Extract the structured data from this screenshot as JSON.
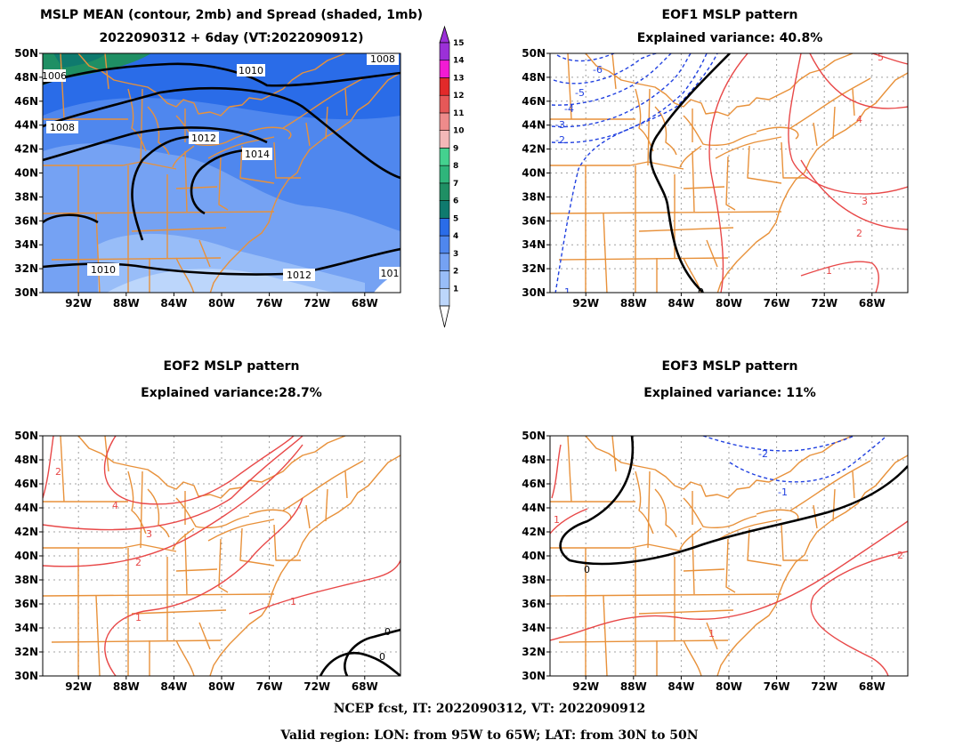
{
  "panels": {
    "p1": {
      "title_line1": "MSLP MEAN (contour, 2mb) and Spread (shaded, 1mb)",
      "title_line2": "2022090312 + 6day (VT:2022090912)",
      "contour_labels": [
        "1010",
        "1008",
        "1006",
        "1008",
        "1012",
        "1014",
        "1010",
        "1012",
        "101"
      ],
      "colorbar": {
        "levels": [
          "1",
          "2",
          "3",
          "4",
          "5",
          "6",
          "7",
          "8",
          "9",
          "10",
          "11",
          "12",
          "13",
          "14",
          "15"
        ],
        "colors": [
          "#bcd6fb",
          "#98bdf8",
          "#75a2f3",
          "#4f87ee",
          "#2a6ce8",
          "#0f7a6e",
          "#1f8f64",
          "#2fb57b",
          "#44d18f",
          "#f3b8b8",
          "#ee8b8b",
          "#e65858",
          "#e22a2a",
          "#f21bd4",
          "#9b30d8"
        ]
      }
    },
    "p2": {
      "title_line1": "EOF1 MSLP pattern",
      "title_line2": "Explained variance: 40.8%",
      "labels": [
        "-6",
        "-5",
        "-4",
        "-3",
        "-2",
        "-1",
        "0",
        "1",
        "2",
        "3",
        "4",
        "5"
      ]
    },
    "p3": {
      "title_line1": "EOF2 MSLP pattern",
      "title_line2": "Explained variance:28.7%",
      "labels": [
        "2",
        "4",
        "3",
        "2",
        "1",
        "1",
        "0",
        "0"
      ]
    },
    "p4": {
      "title_line1": "EOF3 MSLP pattern",
      "title_line2": "Explained variance: 11%",
      "labels": [
        "-2",
        "-1",
        "1",
        "0",
        "1",
        "2"
      ]
    }
  },
  "axes": {
    "lat_ticks": [
      "50N",
      "48N",
      "46N",
      "44N",
      "42N",
      "40N",
      "38N",
      "36N",
      "34N",
      "32N",
      "30N"
    ],
    "lon_ticks": [
      "92W",
      "88W",
      "84W",
      "80W",
      "76W",
      "72W",
      "68W"
    ]
  },
  "footer": {
    "line1": "NCEP fcst, IT: 2022090312, VT: 2022090912",
    "line2": "Valid region: LON: from 95W to 65W; LAT: from 30N to 50N"
  },
  "colors": {
    "coast": "#e8913a",
    "positive": "#e84848",
    "negative": "#2040e0",
    "zero": "#000000",
    "grid": "#a0a0a0"
  }
}
